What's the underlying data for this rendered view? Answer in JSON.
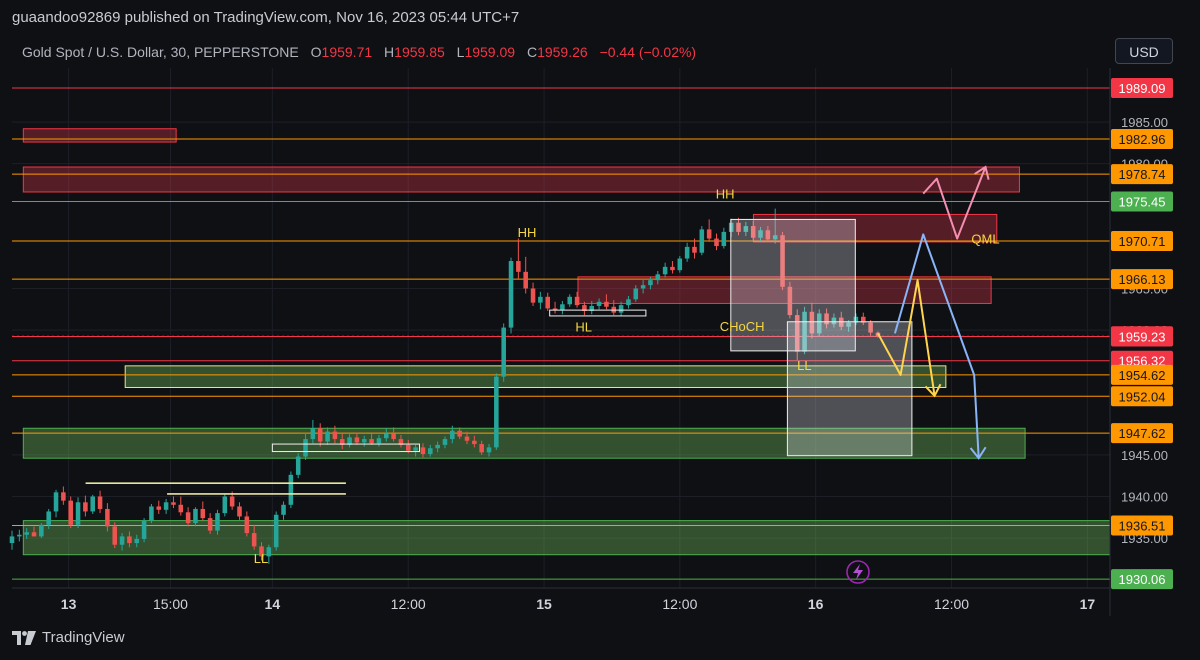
{
  "header": {
    "published": "guaandoo92869 published on TradingView.com, Nov 16, 2023 05:44 UTC+7"
  },
  "legend": {
    "symbol": "Gold Spot / U.S. Dollar, 30, PEPPERSTONE",
    "o_label": "O",
    "o_value": "1959.71",
    "h_label": "H",
    "h_value": "1959.85",
    "l_label": "L",
    "l_value": "1959.09",
    "c_label": "C",
    "c_value": "1959.26",
    "change": "−0.44 (−0.02%)"
  },
  "currency_button": "USD",
  "footer": {
    "brand": "TradingView"
  },
  "colors": {
    "background": "#0f1014",
    "up": "#26a69a",
    "down": "#ef5350",
    "orange_line": "#ff9800",
    "red_line": "#f23645",
    "green_line": "#4caf50"
  },
  "icons": [
    "lightning-icon",
    "tradingview-logo-icon"
  ],
  "chart_data": {
    "type": "candlestick",
    "yaxis": {
      "range": [
        1929,
        1991.5
      ],
      "ticks": [
        {
          "value": 1985,
          "label": "1985.00"
        },
        {
          "value": 1980,
          "label": "1980.00"
        },
        {
          "value": 1965,
          "label": "1965.00"
        },
        {
          "value": 1960,
          "label": "1960.00"
        },
        {
          "value": 1945,
          "label": "1945.00"
        },
        {
          "value": 1940,
          "label": "1940.00"
        },
        {
          "value": 1935,
          "label": "1935.00"
        }
      ]
    },
    "xaxis": {
      "ticks": [
        {
          "label": "13",
          "hour": 0,
          "bold": true
        },
        {
          "label": "15:00",
          "hour": 9,
          "bold": false
        },
        {
          "label": "14",
          "hour": 18,
          "bold": true
        },
        {
          "label": "12:00",
          "hour": 30,
          "bold": false
        },
        {
          "label": "15",
          "hour": 42,
          "bold": true
        },
        {
          "label": "12:00",
          "hour": 54,
          "bold": false
        },
        {
          "label": "16",
          "hour": 66,
          "bold": true
        },
        {
          "label": "12:00",
          "hour": 78,
          "bold": false
        },
        {
          "label": "17",
          "hour": 90,
          "bold": true
        }
      ]
    },
    "price_levels": [
      {
        "value": 1989.09,
        "label": "1989.09",
        "color": "#f23645",
        "dashed": false
      },
      {
        "value": 1982.96,
        "label": "1982.96",
        "color": "#ff9800",
        "dashed": false
      },
      {
        "value": 1978.74,
        "label": "1978.74",
        "color": "#ff9800",
        "dashed": false
      },
      {
        "value": 1975.45,
        "label": "1975.45",
        "color": "#4caf50",
        "dashed": false
      },
      {
        "value": 1970.71,
        "label": "1970.71",
        "color": "#ff9800",
        "dashed": false
      },
      {
        "value": 1966.13,
        "label": "1966.13",
        "color": "#ff9800",
        "dashed": false
      },
      {
        "value": 1959.26,
        "label": "1959.26",
        "color": "#f23645",
        "dashed": true
      },
      {
        "value": 1959.23,
        "label": "1959.23",
        "color": "#f23645",
        "dashed": false
      },
      {
        "value": 1956.32,
        "label": "1956.32",
        "color": "#f23645",
        "dashed": false
      },
      {
        "value": 1954.62,
        "label": "1954.62",
        "color": "#ff9800",
        "dashed": false
      },
      {
        "value": 1952.04,
        "label": "1952.04",
        "color": "#ff9800",
        "dashed": false
      },
      {
        "value": 1947.62,
        "label": "1947.62",
        "color": "#ff9800",
        "dashed": false
      },
      {
        "value": 1936.51,
        "label": "1936.51",
        "color": "#ff9800",
        "dashed": false
      },
      {
        "value": 1930.06,
        "label": "1930.06",
        "color": "#4caf50",
        "dashed": false
      }
    ],
    "zones": [
      {
        "kind": "supply",
        "t1": -4,
        "t2": 9.5,
        "top": 1984.2,
        "bottom": 1982.6
      },
      {
        "kind": "supply",
        "t1": -4,
        "t2": 84,
        "top": 1979.6,
        "bottom": 1976.6
      },
      {
        "kind": "supply",
        "t1": 60.5,
        "t2": 82,
        "top": 1973.9,
        "bottom": 1970.6
      },
      {
        "kind": "supply",
        "t1": 45,
        "t2": 81.5,
        "top": 1966.4,
        "bottom": 1963.2
      },
      {
        "kind": "demand",
        "t1": 5,
        "t2": 77.5,
        "top": 1955.7,
        "bottom": 1953.1
      },
      {
        "kind": "demand",
        "t1": -4,
        "t2": 84.5,
        "top": 1948.2,
        "bottom": 1944.6
      },
      {
        "kind": "demand",
        "t1": -4,
        "t2": 93,
        "top": 1937.1,
        "bottom": 1933.0
      }
    ],
    "boxes": [
      {
        "t1": 58.5,
        "t2": 69.5,
        "top": 1973.3,
        "bottom": 1957.5
      },
      {
        "t1": 63.5,
        "t2": 74.5,
        "top": 1961.0,
        "bottom": 1944.9
      }
    ],
    "hlines": [
      {
        "t1": 1.5,
        "t2": 24.5,
        "value": 1941.6
      },
      {
        "t1": 8.7,
        "t2": 24.5,
        "value": 1940.3
      }
    ],
    "small_boxes": [
      {
        "t1": 18,
        "t2": 31,
        "top": 1946.3,
        "bottom": 1945.4
      },
      {
        "t1": 42.5,
        "t2": 51,
        "top": 1962.4,
        "bottom": 1961.7
      }
    ],
    "annotations": [
      {
        "text": "HH",
        "t": 40.5,
        "value": 1971.2,
        "color": "#f5d742"
      },
      {
        "text": "HH",
        "t": 58,
        "value": 1975.8,
        "color": "#f5d742"
      },
      {
        "text": "HL",
        "t": 45.5,
        "value": 1959.8,
        "color": "#f5d742"
      },
      {
        "text": "CHoCH",
        "t": 59.5,
        "value": 1959.9,
        "color": "#f5d742"
      },
      {
        "text": "LL",
        "t": 65,
        "value": 1955.2,
        "color": "#f5d742"
      },
      {
        "text": "LL",
        "t": 17,
        "value": 1932.0,
        "color": "#f5d742"
      },
      {
        "text": "QML",
        "t": 81,
        "value": 1970.4,
        "color": "#f5d742"
      }
    ],
    "projections": [
      {
        "color": "#ffd54f",
        "points": [
          [
            71.5,
            1959.6
          ],
          [
            73.5,
            1954.6
          ],
          [
            75,
            1966.0
          ],
          [
            76.5,
            1952.1
          ]
        ]
      },
      {
        "color": "#8ab4f8",
        "points": [
          [
            73,
            1959.6
          ],
          [
            75.5,
            1971.5
          ],
          [
            80,
            1954.6
          ],
          [
            80.4,
            1944.6
          ]
        ]
      },
      {
        "color": "#f48fb1",
        "points": [
          [
            75.5,
            1976.4
          ],
          [
            76.7,
            1978.2
          ],
          [
            78.5,
            1971.0
          ],
          [
            81,
            1979.6
          ]
        ]
      }
    ],
    "candles": [
      {
        "o": 1934.4,
        "h": 1935.9,
        "l": 1933.6,
        "c": 1935.2
      },
      {
        "o": 1935.2,
        "h": 1936.0,
        "l": 1934.6,
        "c": 1935.4
      },
      {
        "o": 1935.4,
        "h": 1936.2,
        "l": 1934.9,
        "c": 1935.7
      },
      {
        "o": 1935.7,
        "h": 1936.4,
        "l": 1935.2,
        "c": 1935.2
      },
      {
        "o": 1935.2,
        "h": 1936.8,
        "l": 1935.0,
        "c": 1936.6
      },
      {
        "o": 1936.6,
        "h": 1938.5,
        "l": 1936.1,
        "c": 1938.2
      },
      {
        "o": 1938.2,
        "h": 1940.8,
        "l": 1937.5,
        "c": 1940.5
      },
      {
        "o": 1940.5,
        "h": 1941.2,
        "l": 1939.0,
        "c": 1939.5
      },
      {
        "o": 1939.5,
        "h": 1940.0,
        "l": 1936.2,
        "c": 1936.6
      },
      {
        "o": 1936.6,
        "h": 1939.9,
        "l": 1936.2,
        "c": 1939.3
      },
      {
        "o": 1939.3,
        "h": 1940.1,
        "l": 1937.6,
        "c": 1938.2
      },
      {
        "o": 1938.2,
        "h": 1940.2,
        "l": 1937.9,
        "c": 1940.0
      },
      {
        "o": 1940.0,
        "h": 1940.7,
        "l": 1938.0,
        "c": 1938.5
      },
      {
        "o": 1938.5,
        "h": 1939.2,
        "l": 1935.8,
        "c": 1936.4
      },
      {
        "o": 1936.4,
        "h": 1936.9,
        "l": 1933.8,
        "c": 1934.2
      },
      {
        "o": 1934.2,
        "h": 1935.6,
        "l": 1933.5,
        "c": 1935.2
      },
      {
        "o": 1935.2,
        "h": 1935.8,
        "l": 1933.9,
        "c": 1934.4
      },
      {
        "o": 1934.4,
        "h": 1935.4,
        "l": 1933.9,
        "c": 1934.9
      },
      {
        "o": 1934.9,
        "h": 1937.4,
        "l": 1934.5,
        "c": 1937.1
      },
      {
        "o": 1937.1,
        "h": 1939.1,
        "l": 1936.8,
        "c": 1938.8
      },
      {
        "o": 1938.8,
        "h": 1939.5,
        "l": 1937.9,
        "c": 1938.4
      },
      {
        "o": 1938.4,
        "h": 1939.7,
        "l": 1937.9,
        "c": 1939.3
      },
      {
        "o": 1939.3,
        "h": 1940.0,
        "l": 1938.6,
        "c": 1939.0
      },
      {
        "o": 1939.0,
        "h": 1940.0,
        "l": 1937.7,
        "c": 1938.1
      },
      {
        "o": 1938.1,
        "h": 1938.7,
        "l": 1936.4,
        "c": 1936.8
      },
      {
        "o": 1936.8,
        "h": 1938.7,
        "l": 1936.4,
        "c": 1938.5
      },
      {
        "o": 1938.5,
        "h": 1939.4,
        "l": 1937.1,
        "c": 1937.4
      },
      {
        "o": 1937.4,
        "h": 1938.0,
        "l": 1935.5,
        "c": 1935.9
      },
      {
        "o": 1935.9,
        "h": 1938.4,
        "l": 1935.4,
        "c": 1938.0
      },
      {
        "o": 1938.0,
        "h": 1940.3,
        "l": 1937.6,
        "c": 1940.0
      },
      {
        "o": 1940.0,
        "h": 1940.6,
        "l": 1938.4,
        "c": 1938.8
      },
      {
        "o": 1938.8,
        "h": 1939.3,
        "l": 1937.2,
        "c": 1937.6
      },
      {
        "o": 1937.6,
        "h": 1938.2,
        "l": 1935.2,
        "c": 1935.6
      },
      {
        "o": 1935.6,
        "h": 1936.6,
        "l": 1933.6,
        "c": 1934.0
      },
      {
        "o": 1934.0,
        "h": 1934.5,
        "l": 1932.3,
        "c": 1932.8
      },
      {
        "o": 1932.8,
        "h": 1934.2,
        "l": 1931.9,
        "c": 1933.9
      },
      {
        "o": 1933.9,
        "h": 1938.2,
        "l": 1933.5,
        "c": 1937.8
      },
      {
        "o": 1937.8,
        "h": 1939.4,
        "l": 1937.2,
        "c": 1939.0
      },
      {
        "o": 1939.0,
        "h": 1943.0,
        "l": 1938.6,
        "c": 1942.6
      },
      {
        "o": 1942.6,
        "h": 1945.2,
        "l": 1942.2,
        "c": 1944.8
      },
      {
        "o": 1944.8,
        "h": 1947.7,
        "l": 1944.4,
        "c": 1946.9
      },
      {
        "o": 1946.9,
        "h": 1949.2,
        "l": 1946.4,
        "c": 1948.2
      },
      {
        "o": 1948.2,
        "h": 1948.8,
        "l": 1946.0,
        "c": 1946.6
      },
      {
        "o": 1946.6,
        "h": 1948.3,
        "l": 1946.2,
        "c": 1947.8
      },
      {
        "o": 1947.8,
        "h": 1948.5,
        "l": 1946.4,
        "c": 1946.9
      },
      {
        "o": 1946.9,
        "h": 1947.6,
        "l": 1945.7,
        "c": 1946.2
      },
      {
        "o": 1946.2,
        "h": 1947.5,
        "l": 1945.9,
        "c": 1947.1
      },
      {
        "o": 1947.1,
        "h": 1947.7,
        "l": 1946.2,
        "c": 1946.5
      },
      {
        "o": 1946.5,
        "h": 1947.3,
        "l": 1946.0,
        "c": 1946.9
      },
      {
        "o": 1946.9,
        "h": 1947.6,
        "l": 1946.2,
        "c": 1946.4
      },
      {
        "o": 1946.4,
        "h": 1947.4,
        "l": 1946.0,
        "c": 1947.0
      },
      {
        "o": 1947.0,
        "h": 1948.2,
        "l": 1946.6,
        "c": 1947.6
      },
      {
        "o": 1947.6,
        "h": 1948.3,
        "l": 1946.6,
        "c": 1946.9
      },
      {
        "o": 1946.9,
        "h": 1947.4,
        "l": 1945.9,
        "c": 1946.2
      },
      {
        "o": 1946.2,
        "h": 1946.8,
        "l": 1945.2,
        "c": 1945.5
      },
      {
        "o": 1945.5,
        "h": 1946.2,
        "l": 1944.8,
        "c": 1945.9
      },
      {
        "o": 1945.9,
        "h": 1946.4,
        "l": 1944.7,
        "c": 1945.1
      },
      {
        "o": 1945.1,
        "h": 1946.2,
        "l": 1944.8,
        "c": 1945.8
      },
      {
        "o": 1945.8,
        "h": 1946.6,
        "l": 1945.3,
        "c": 1946.2
      },
      {
        "o": 1946.2,
        "h": 1947.2,
        "l": 1945.8,
        "c": 1946.9
      },
      {
        "o": 1946.9,
        "h": 1948.5,
        "l": 1946.4,
        "c": 1947.9
      },
      {
        "o": 1947.9,
        "h": 1948.3,
        "l": 1946.9,
        "c": 1947.2
      },
      {
        "o": 1947.2,
        "h": 1947.8,
        "l": 1946.3,
        "c": 1946.7
      },
      {
        "o": 1946.7,
        "h": 1947.3,
        "l": 1945.9,
        "c": 1946.3
      },
      {
        "o": 1946.3,
        "h": 1946.7,
        "l": 1945.0,
        "c": 1945.3
      },
      {
        "o": 1945.3,
        "h": 1946.3,
        "l": 1944.8,
        "c": 1945.9
      },
      {
        "o": 1945.9,
        "h": 1954.8,
        "l": 1945.6,
        "c": 1954.4
      },
      {
        "o": 1954.4,
        "h": 1960.8,
        "l": 1953.8,
        "c": 1960.3
      },
      {
        "o": 1960.3,
        "h": 1968.7,
        "l": 1959.6,
        "c": 1968.3
      },
      {
        "o": 1968.3,
        "h": 1971.0,
        "l": 1966.2,
        "c": 1967.0
      },
      {
        "o": 1967.0,
        "h": 1968.8,
        "l": 1964.4,
        "c": 1965.0
      },
      {
        "o": 1965.0,
        "h": 1965.7,
        "l": 1962.9,
        "c": 1963.3
      },
      {
        "o": 1963.3,
        "h": 1964.6,
        "l": 1962.5,
        "c": 1964.0
      },
      {
        "o": 1964.0,
        "h": 1964.5,
        "l": 1962.3,
        "c": 1962.6
      },
      {
        "o": 1962.6,
        "h": 1963.4,
        "l": 1962.0,
        "c": 1962.4
      },
      {
        "o": 1962.4,
        "h": 1963.5,
        "l": 1961.9,
        "c": 1963.1
      },
      {
        "o": 1963.1,
        "h": 1964.3,
        "l": 1962.8,
        "c": 1964.0
      },
      {
        "o": 1964.0,
        "h": 1964.6,
        "l": 1962.7,
        "c": 1963.0
      },
      {
        "o": 1963.0,
        "h": 1963.4,
        "l": 1961.8,
        "c": 1962.3
      },
      {
        "o": 1962.3,
        "h": 1963.5,
        "l": 1961.9,
        "c": 1962.9
      },
      {
        "o": 1962.9,
        "h": 1963.8,
        "l": 1962.5,
        "c": 1963.4
      },
      {
        "o": 1963.4,
        "h": 1964.3,
        "l": 1962.5,
        "c": 1962.8
      },
      {
        "o": 1962.8,
        "h": 1963.6,
        "l": 1961.8,
        "c": 1962.1
      },
      {
        "o": 1962.1,
        "h": 1963.4,
        "l": 1961.7,
        "c": 1963.0
      },
      {
        "o": 1963.0,
        "h": 1964.1,
        "l": 1962.6,
        "c": 1963.7
      },
      {
        "o": 1963.7,
        "h": 1965.4,
        "l": 1963.4,
        "c": 1965.0
      },
      {
        "o": 1965.0,
        "h": 1966.0,
        "l": 1964.4,
        "c": 1965.4
      },
      {
        "o": 1965.4,
        "h": 1966.4,
        "l": 1964.9,
        "c": 1966.0
      },
      {
        "o": 1966.0,
        "h": 1967.1,
        "l": 1965.5,
        "c": 1966.7
      },
      {
        "o": 1966.7,
        "h": 1968.1,
        "l": 1966.3,
        "c": 1967.6
      },
      {
        "o": 1967.6,
        "h": 1968.3,
        "l": 1966.8,
        "c": 1967.2
      },
      {
        "o": 1967.2,
        "h": 1968.9,
        "l": 1966.9,
        "c": 1968.6
      },
      {
        "o": 1968.6,
        "h": 1970.5,
        "l": 1968.2,
        "c": 1970.0
      },
      {
        "o": 1970.0,
        "h": 1971.0,
        "l": 1968.6,
        "c": 1969.3
      },
      {
        "o": 1969.3,
        "h": 1972.5,
        "l": 1969.0,
        "c": 1972.1
      },
      {
        "o": 1972.1,
        "h": 1973.3,
        "l": 1970.6,
        "c": 1971.0
      },
      {
        "o": 1971.0,
        "h": 1971.6,
        "l": 1969.6,
        "c": 1970.1
      },
      {
        "o": 1970.1,
        "h": 1972.3,
        "l": 1969.8,
        "c": 1971.8
      },
      {
        "o": 1971.8,
        "h": 1973.4,
        "l": 1971.2,
        "c": 1972.9
      },
      {
        "o": 1972.9,
        "h": 1973.5,
        "l": 1971.4,
        "c": 1971.8
      },
      {
        "o": 1971.8,
        "h": 1973.0,
        "l": 1971.3,
        "c": 1972.5
      },
      {
        "o": 1972.5,
        "h": 1973.1,
        "l": 1970.8,
        "c": 1971.1
      },
      {
        "o": 1971.1,
        "h": 1972.4,
        "l": 1970.7,
        "c": 1972.0
      },
      {
        "o": 1972.0,
        "h": 1972.5,
        "l": 1970.6,
        "c": 1970.9
      },
      {
        "o": 1970.9,
        "h": 1974.6,
        "l": 1970.4,
        "c": 1971.4
      },
      {
        "o": 1971.4,
        "h": 1971.8,
        "l": 1964.8,
        "c": 1965.2
      },
      {
        "o": 1965.2,
        "h": 1965.8,
        "l": 1961.4,
        "c": 1961.8
      },
      {
        "o": 1961.8,
        "h": 1962.5,
        "l": 1956.4,
        "c": 1957.4
      },
      {
        "o": 1957.4,
        "h": 1962.8,
        "l": 1957.1,
        "c": 1962.2
      },
      {
        "o": 1962.2,
        "h": 1963.3,
        "l": 1959.0,
        "c": 1959.6
      },
      {
        "o": 1959.6,
        "h": 1962.5,
        "l": 1959.2,
        "c": 1962.0
      },
      {
        "o": 1962.0,
        "h": 1962.6,
        "l": 1960.2,
        "c": 1960.7
      },
      {
        "o": 1960.7,
        "h": 1962.0,
        "l": 1960.3,
        "c": 1961.5
      },
      {
        "o": 1961.5,
        "h": 1962.2,
        "l": 1960.0,
        "c": 1960.4
      },
      {
        "o": 1960.4,
        "h": 1961.2,
        "l": 1959.8,
        "c": 1960.9
      },
      {
        "o": 1960.9,
        "h": 1962.0,
        "l": 1960.6,
        "c": 1961.6
      },
      {
        "o": 1961.6,
        "h": 1962.1,
        "l": 1960.6,
        "c": 1960.9
      },
      {
        "o": 1960.9,
        "h": 1961.2,
        "l": 1959.3,
        "c": 1959.7
      },
      {
        "o": 1959.7,
        "h": 1959.85,
        "l": 1959.09,
        "c": 1959.26
      }
    ]
  }
}
